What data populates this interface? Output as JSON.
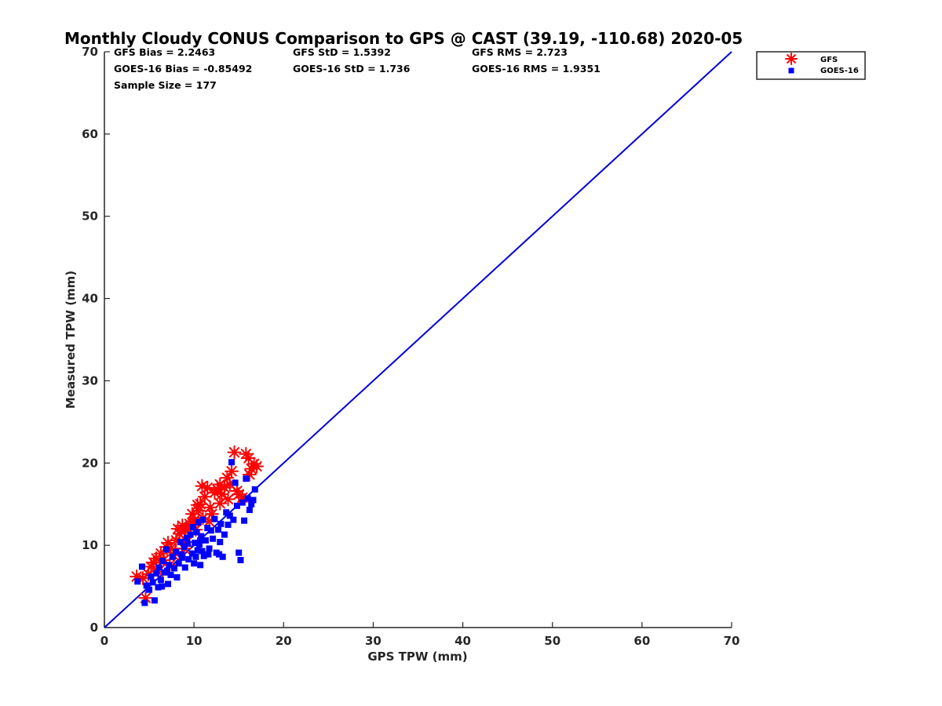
{
  "chart_data": {
    "type": "scatter",
    "title": "Monthly Cloudy CONUS Comparison to GPS @ CAST (39.19, -110.68) 2020-05",
    "xlabel": "GPS TPW (mm)",
    "ylabel": "Measured TPW (mm)",
    "xlim": [
      0,
      70
    ],
    "ylim": [
      0,
      70
    ],
    "xticks": [
      0,
      10,
      20,
      30,
      40,
      50,
      60,
      70
    ],
    "yticks": [
      0,
      10,
      20,
      30,
      40,
      50,
      60,
      70
    ],
    "grid": false,
    "legend_position": "top-right outside",
    "stats": [
      [
        "GFS Bias = 2.2463",
        "GFS StD = 1.5392",
        "GFS RMS = 2.723"
      ],
      [
        "GOES-16 Bias = -0.85492",
        "GOES-16 StD = 1.736",
        "GOES-16 RMS = 1.9351"
      ],
      [
        "Sample Size = 177"
      ]
    ],
    "reference_line": {
      "x": [
        0,
        70
      ],
      "y": [
        0,
        70
      ],
      "color": "#0000dd"
    },
    "series": [
      {
        "name": "GFS",
        "marker": "asterisk",
        "color": "#ff0000",
        "points": [
          [
            3.6,
            6.2
          ],
          [
            4.3,
            6.0
          ],
          [
            4.6,
            3.6
          ],
          [
            4.9,
            6.5
          ],
          [
            5.2,
            7.4
          ],
          [
            5.5,
            7.9
          ],
          [
            5.8,
            8.4
          ],
          [
            6.0,
            6.8
          ],
          [
            6.3,
            9.0
          ],
          [
            6.6,
            8.2
          ],
          [
            6.9,
            9.8
          ],
          [
            7.1,
            10.3
          ],
          [
            7.4,
            9.6
          ],
          [
            7.7,
            8.8
          ],
          [
            8.0,
            10.6
          ],
          [
            8.2,
            12.0
          ],
          [
            8.4,
            11.4
          ],
          [
            8.7,
            12.4
          ],
          [
            9.0,
            11.8
          ],
          [
            9.2,
            10.4
          ],
          [
            9.5,
            12.6
          ],
          [
            9.8,
            13.8
          ],
          [
            10.0,
            12.9
          ],
          [
            10.2,
            11.9
          ],
          [
            10.5,
            14.2
          ],
          [
            10.7,
            15.0
          ],
          [
            10.9,
            17.2
          ],
          [
            11.0,
            13.3
          ],
          [
            11.2,
            15.9
          ],
          [
            11.5,
            17.0
          ],
          [
            11.8,
            14.6
          ],
          [
            12.0,
            13.8
          ],
          [
            12.3,
            16.4
          ],
          [
            12.6,
            16.8
          ],
          [
            12.9,
            17.4
          ],
          [
            13.1,
            16.2
          ],
          [
            13.4,
            17.0
          ],
          [
            13.7,
            18.2
          ],
          [
            14.0,
            17.4
          ],
          [
            14.2,
            19.0
          ],
          [
            14.5,
            21.3
          ],
          [
            14.8,
            16.6
          ],
          [
            15.0,
            16.2
          ],
          [
            15.4,
            15.8
          ],
          [
            15.8,
            21.1
          ],
          [
            16.1,
            20.6
          ],
          [
            16.4,
            19.3
          ],
          [
            16.7,
            19.9
          ],
          [
            17.0,
            19.6
          ],
          [
            16.2,
            18.6
          ],
          [
            10.4,
            14.9
          ],
          [
            9.6,
            12.2
          ],
          [
            8.9,
            9.6
          ],
          [
            7.9,
            9.1
          ],
          [
            6.2,
            8.2
          ],
          [
            7.3,
            7.6
          ],
          [
            11.7,
            12.9
          ],
          [
            12.9,
            15.1
          ],
          [
            13.8,
            15.6
          ],
          [
            10.1,
            13.1
          ]
        ]
      },
      {
        "name": "GOES-16",
        "marker": "square",
        "color": "#0000ff",
        "points": [
          [
            3.7,
            5.6
          ],
          [
            4.2,
            7.4
          ],
          [
            4.5,
            3.0
          ],
          [
            4.7,
            5.1
          ],
          [
            5.0,
            4.6
          ],
          [
            5.2,
            6.2
          ],
          [
            5.4,
            5.5
          ],
          [
            5.6,
            3.3
          ],
          [
            5.8,
            6.6
          ],
          [
            6.0,
            4.9
          ],
          [
            6.1,
            7.3
          ],
          [
            6.3,
            5.8
          ],
          [
            6.5,
            8.1
          ],
          [
            6.7,
            6.7
          ],
          [
            6.9,
            9.5
          ],
          [
            7.1,
            5.3
          ],
          [
            7.2,
            7.6
          ],
          [
            7.4,
            6.4
          ],
          [
            7.6,
            8.6
          ],
          [
            7.8,
            7.2
          ],
          [
            8.0,
            9.2
          ],
          [
            8.1,
            6.1
          ],
          [
            8.3,
            7.8
          ],
          [
            8.5,
            10.4
          ],
          [
            8.7,
            8.5
          ],
          [
            8.9,
            9.8
          ],
          [
            9.0,
            7.3
          ],
          [
            9.2,
            10.9
          ],
          [
            9.4,
            8.3
          ],
          [
            9.6,
            11.3
          ],
          [
            9.8,
            9.0
          ],
          [
            9.9,
            12.2
          ],
          [
            10.0,
            7.8
          ],
          [
            10.1,
            10.3
          ],
          [
            10.2,
            8.6
          ],
          [
            10.3,
            11.6
          ],
          [
            10.4,
            9.4
          ],
          [
            10.5,
            12.8
          ],
          [
            10.6,
            10.1
          ],
          [
            10.7,
            7.6
          ],
          [
            10.8,
            11.1
          ],
          [
            10.9,
            9.3
          ],
          [
            11.0,
            13.1
          ],
          [
            11.1,
            8.7
          ],
          [
            11.3,
            10.6
          ],
          [
            11.5,
            12.1
          ],
          [
            11.7,
            9.6
          ],
          [
            11.9,
            11.8
          ],
          [
            12.1,
            10.8
          ],
          [
            12.3,
            13.2
          ],
          [
            12.5,
            9.1
          ],
          [
            12.7,
            11.9
          ],
          [
            12.9,
            10.4
          ],
          [
            13.0,
            12.6
          ],
          [
            13.2,
            8.6
          ],
          [
            13.4,
            11.3
          ],
          [
            13.6,
            14.0
          ],
          [
            13.8,
            12.5
          ],
          [
            14.0,
            13.6
          ],
          [
            14.2,
            20.1
          ],
          [
            14.4,
            13.1
          ],
          [
            14.6,
            17.6
          ],
          [
            14.8,
            14.8
          ],
          [
            15.0,
            9.1
          ],
          [
            15.2,
            8.2
          ],
          [
            15.4,
            15.2
          ],
          [
            15.6,
            13.0
          ],
          [
            15.8,
            18.1
          ],
          [
            16.0,
            15.7
          ],
          [
            16.2,
            14.3
          ],
          [
            16.4,
            15.0
          ],
          [
            16.6,
            15.5
          ],
          [
            16.8,
            16.8
          ],
          [
            11.6,
            8.9
          ],
          [
            12.8,
            8.9
          ],
          [
            9.3,
            10.2
          ],
          [
            8.6,
            8.9
          ],
          [
            7.0,
            6.9
          ],
          [
            6.4,
            5.0
          ],
          [
            10.7,
            10.6
          ]
        ]
      }
    ]
  }
}
